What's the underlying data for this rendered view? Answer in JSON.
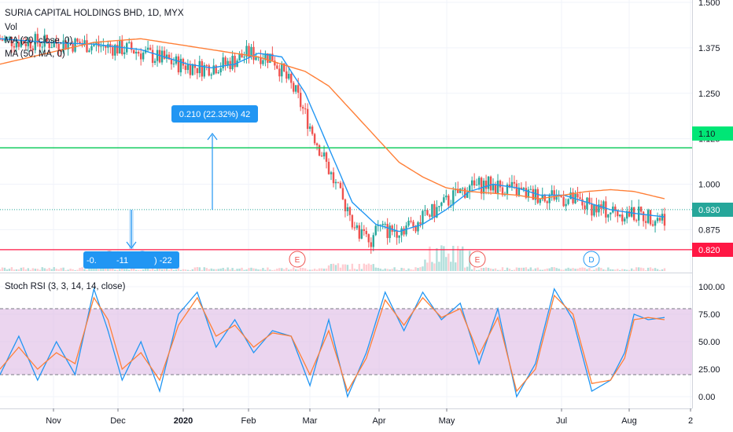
{
  "header": {
    "symbol_title": "SURIA CAPITAL HOLDINGS BHD, 1D, MYX",
    "indicators": [
      "Vol",
      "MA (20, close, 0)",
      "MA (50, MA, 0)"
    ]
  },
  "measure": {
    "up_label": "0.210 (22.32%) 42",
    "down_label_parts": [
      "-0.",
      "-11",
      ") -22"
    ]
  },
  "price_labels": {
    "current": "0.930",
    "green_level": "1.10",
    "red_level": "0.820"
  },
  "chart_data": [
    {
      "type": "candlestick",
      "title": "SURIA CAPITAL HOLDINGS BHD, 1D, MYX",
      "ylim": [
        0.79,
        1.5
      ],
      "y_ticks": [
        1.5,
        1.375,
        1.25,
        1.125,
        1.0,
        0.875
      ],
      "y_tick_labels": [
        "1.500",
        "1.375",
        "1.250",
        "1.125",
        "1.000",
        "0.875"
      ],
      "x_tick_labels": [
        "Nov",
        "Dec",
        "2020",
        "Feb",
        "Mar",
        "Apr",
        "May",
        "Jul",
        "Aug",
        "2"
      ],
      "horizontal_lines": [
        {
          "value": 1.1,
          "color": "#00c853"
        },
        {
          "value": 0.93,
          "color": "#26a69a",
          "style": "dotted"
        },
        {
          "value": 0.82,
          "color": "#ff1744"
        }
      ],
      "event_markers": [
        "E",
        "D",
        "E",
        "E",
        "D"
      ],
      "series": [
        {
          "name": "MA (20, close, 0)",
          "color": "#2196f3",
          "x": [
            0,
            20,
            40,
            60,
            80,
            90,
            100,
            110,
            120,
            130,
            140,
            150,
            160,
            170,
            180,
            190,
            200,
            210,
            220,
            230,
            240,
            250,
            260,
            270,
            283
          ],
          "values": [
            1.4,
            1.39,
            1.385,
            1.37,
            1.33,
            1.32,
            1.33,
            1.36,
            1.35,
            1.25,
            1.1,
            0.95,
            0.89,
            0.87,
            0.89,
            0.93,
            0.98,
            1.0,
            0.99,
            0.97,
            0.97,
            0.95,
            0.93,
            0.92,
            0.91
          ]
        },
        {
          "name": "MA (50, MA, 0)",
          "color": "#ff7f37",
          "x": [
            0,
            20,
            40,
            60,
            80,
            100,
            110,
            120,
            130,
            140,
            150,
            160,
            170,
            180,
            190,
            200,
            210,
            220,
            230,
            240,
            250,
            260,
            270,
            283
          ],
          "values": [
            1.33,
            1.36,
            1.39,
            1.4,
            1.38,
            1.36,
            1.35,
            1.33,
            1.31,
            1.27,
            1.2,
            1.13,
            1.06,
            1.02,
            0.99,
            0.98,
            0.975,
            0.97,
            0.96,
            0.97,
            0.98,
            0.985,
            0.98,
            0.96
          ]
        }
      ]
    },
    {
      "type": "line",
      "title": "Stoch RSI (3, 3, 14, 14, close)",
      "ylim": [
        -10,
        110
      ],
      "y_ticks": [
        100,
        75,
        50,
        25,
        0
      ],
      "y_tick_labels": [
        "100.00",
        "75.00",
        "50.00",
        "25.00",
        "0.00"
      ],
      "bands": [
        20,
        80
      ],
      "series": [
        {
          "name": "K",
          "color": "#2196f3",
          "x": [
            0,
            8,
            16,
            24,
            32,
            40,
            46,
            52,
            60,
            68,
            76,
            84,
            92,
            100,
            108,
            116,
            124,
            132,
            140,
            148,
            156,
            164,
            172,
            180,
            188,
            196,
            204,
            212,
            220,
            228,
            236,
            244,
            252,
            260,
            266,
            270,
            276,
            283
          ],
          "values": [
            20,
            55,
            15,
            50,
            20,
            98,
            60,
            15,
            50,
            5,
            75,
            95,
            45,
            70,
            40,
            60,
            55,
            10,
            70,
            0,
            40,
            95,
            60,
            95,
            70,
            85,
            30,
            80,
            0,
            30,
            98,
            70,
            5,
            15,
            40,
            75,
            70,
            72
          ]
        },
        {
          "name": "D",
          "color": "#ff7f37",
          "x": [
            0,
            8,
            16,
            24,
            32,
            40,
            46,
            52,
            60,
            68,
            76,
            84,
            92,
            100,
            108,
            116,
            124,
            132,
            140,
            148,
            156,
            164,
            172,
            180,
            188,
            196,
            204,
            212,
            220,
            228,
            236,
            244,
            252,
            260,
            266,
            270,
            276,
            283
          ],
          "values": [
            25,
            45,
            25,
            40,
            30,
            90,
            70,
            25,
            40,
            15,
            65,
            90,
            55,
            65,
            45,
            58,
            55,
            20,
            60,
            5,
            35,
            88,
            65,
            90,
            72,
            80,
            38,
            72,
            5,
            25,
            92,
            75,
            12,
            15,
            35,
            70,
            72,
            70
          ]
        }
      ]
    }
  ]
}
